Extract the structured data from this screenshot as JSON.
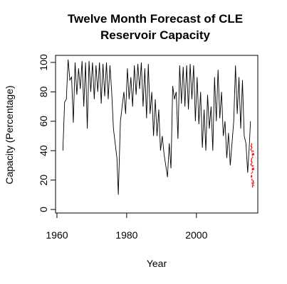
{
  "chart_data": {
    "type": "line",
    "title": [
      "Twelve Month Forecast of CLE",
      "Reservoir Capacity"
    ],
    "xlabel": "Year",
    "ylabel": "Capacity (Percentage)",
    "xlim": [
      1959.6,
      2017.6
    ],
    "xticks": [
      1960,
      1980,
      2000
    ],
    "ylim": [
      -2.4,
      104.8
    ],
    "yticks": [
      0,
      20,
      40,
      60,
      80,
      100
    ],
    "series": [
      {
        "color": "#000000",
        "dash": false,
        "x": [
          1961.7,
          1962.2,
          1962.7,
          1963.2,
          1963.7,
          1964.2,
          1964.7,
          1965.2,
          1965.7,
          1966.2,
          1966.7,
          1967.2,
          1967.7,
          1968.2,
          1968.7,
          1969.2,
          1969.7,
          1970.2,
          1970.7,
          1971.2,
          1971.7,
          1972.2,
          1972.7,
          1973.2,
          1973.7,
          1974.2,
          1974.7,
          1975.2,
          1975.7,
          1976.2,
          1976.7,
          1977.2,
          1977.6,
          1978.2,
          1978.7,
          1979.2,
          1979.7,
          1980.2,
          1980.7,
          1981.2,
          1981.7,
          1982.2,
          1982.7,
          1983.2,
          1983.7,
          1984.2,
          1984.7,
          1985.2,
          1985.7,
          1986.2,
          1986.7,
          1987.2,
          1987.7,
          1988.2,
          1988.7,
          1989.2,
          1989.7,
          1990.2,
          1990.7,
          1991.2,
          1991.7,
          1992.2,
          1992.7,
          1993.2,
          1993.7,
          1994.2,
          1994.7,
          1995.2,
          1995.7,
          1996.2,
          1996.7,
          1997.2,
          1997.7,
          1998.2,
          1998.7,
          1999.2,
          1999.7,
          2000.2,
          2000.7,
          2001.2,
          2001.7,
          2002.2,
          2002.7,
          2003.2,
          2003.7,
          2004.2,
          2004.7,
          2005.2,
          2005.7,
          2006.2,
          2006.7,
          2007.2,
          2007.7,
          2008.2,
          2008.7,
          2009.2,
          2009.7,
          2010.2,
          2010.7,
          2011.2,
          2011.7,
          2012.2,
          2012.7,
          2013.2,
          2013.7,
          2014.2,
          2014.7,
          2015.2,
          2015.5
        ],
        "values": [
          40,
          73,
          75,
          102,
          88,
          90,
          59,
          100,
          78,
          96,
          82,
          101,
          70,
          100,
          55,
          101,
          80,
          100,
          75,
          98,
          80,
          100,
          72,
          99,
          77,
          100,
          75,
          98,
          80,
          55,
          45,
          35,
          10,
          60,
          70,
          80,
          65,
          96,
          75,
          90,
          70,
          98,
          78,
          99,
          82,
          100,
          70,
          96,
          62,
          99,
          65,
          80,
          50,
          75,
          50,
          68,
          40,
          50,
          38,
          30,
          22,
          45,
          28,
          84,
          75,
          80,
          48,
          98,
          72,
          97,
          70,
          98,
          68,
          99,
          75,
          98,
          60,
          90,
          58,
          80,
          42,
          68,
          40,
          78,
          55,
          70,
          40,
          90,
          60,
          95,
          62,
          80,
          50,
          60,
          35,
          52,
          30,
          45,
          60,
          98,
          65,
          90,
          55,
          88,
          50,
          45,
          25,
          45,
          60
        ]
      },
      {
        "color": "#ff0000",
        "dash": true,
        "x": [
          2015.6,
          2015.7,
          2015.8,
          2015.9,
          2016.0,
          2016.1,
          2016.2,
          2016.3,
          2016.4,
          2016.5
        ],
        "values": [
          30,
          32,
          35,
          33,
          28,
          25,
          27,
          30,
          28,
          26
        ]
      },
      {
        "color": "#ff0000",
        "dash": true,
        "x": [
          2015.6,
          2015.7,
          2015.8,
          2015.9,
          2016.0,
          2016.1,
          2016.2,
          2016.3,
          2016.4,
          2016.5
        ],
        "values": [
          40,
          43,
          45,
          42,
          38,
          35,
          37,
          40,
          38,
          36
        ]
      },
      {
        "color": "#ff0000",
        "dash": true,
        "x": [
          2015.6,
          2015.7,
          2015.8,
          2015.9,
          2016.0,
          2016.1,
          2016.2,
          2016.3,
          2016.4,
          2016.5
        ],
        "values": [
          22,
          22,
          25,
          22,
          18,
          15,
          17,
          20,
          18,
          16
        ]
      }
    ]
  }
}
